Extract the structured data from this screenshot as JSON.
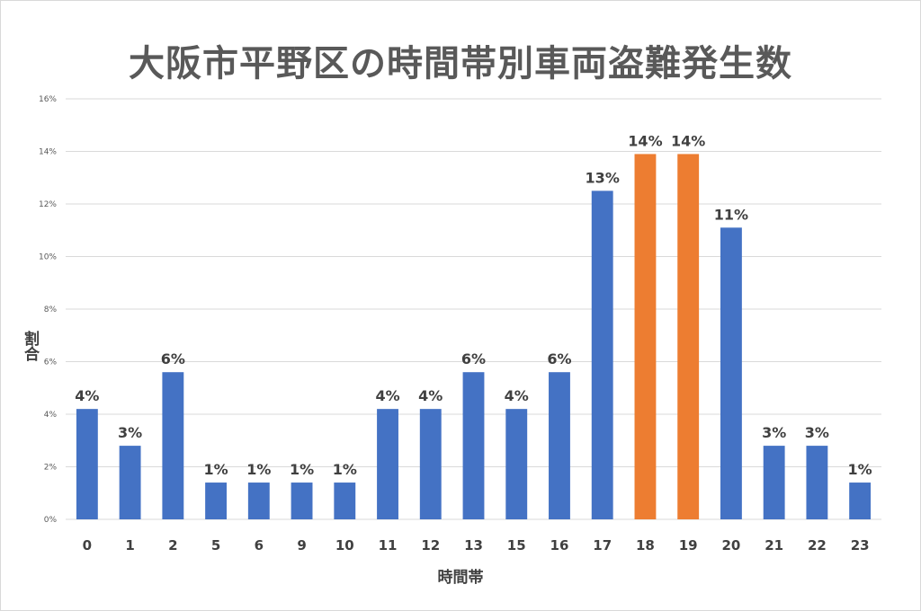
{
  "chart_data": {
    "type": "bar",
    "title": "大阪市平野区の時間帯別車両盗難発生数",
    "xlabel": "時間帯",
    "ylabel": "割合",
    "ylim": [
      0,
      16
    ],
    "yticks": [
      "0%",
      "2%",
      "4%",
      "6%",
      "8%",
      "10%",
      "12%",
      "14%",
      "16%"
    ],
    "grid": true,
    "categories": [
      "0",
      "1",
      "2",
      "5",
      "6",
      "9",
      "10",
      "11",
      "12",
      "13",
      "15",
      "16",
      "17",
      "18",
      "19",
      "20",
      "21",
      "22",
      "23"
    ],
    "values": [
      4.2,
      2.8,
      5.6,
      1.4,
      1.4,
      1.4,
      1.4,
      4.2,
      4.2,
      5.6,
      4.2,
      5.6,
      12.5,
      13.9,
      13.9,
      11.1,
      2.8,
      2.8,
      1.4
    ],
    "labels": [
      "4%",
      "3%",
      "6%",
      "1%",
      "1%",
      "1%",
      "1%",
      "4%",
      "4%",
      "6%",
      "4%",
      "6%",
      "13%",
      "14%",
      "14%",
      "11%",
      "3%",
      "3%",
      "1%"
    ],
    "highlight": [
      "18",
      "19"
    ],
    "colors": {
      "default": "#4472c4",
      "highlight": "#ed7d31",
      "grid": "#d9d9d9"
    }
  }
}
